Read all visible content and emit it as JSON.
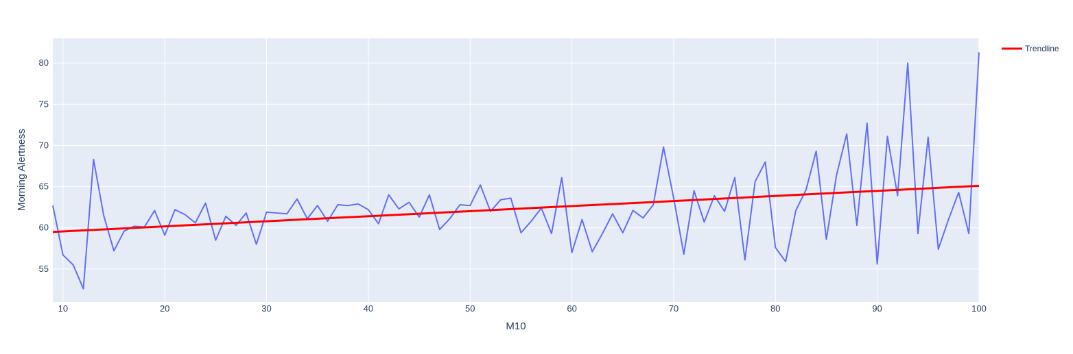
{
  "chart_data": {
    "type": "line",
    "title": "",
    "xlabel": "M10",
    "ylabel": "Morning Alertness",
    "xlim": [
      9,
      100
    ],
    "ylim": [
      51,
      83
    ],
    "xticks": [
      10,
      20,
      30,
      40,
      50,
      60,
      70,
      80,
      90,
      100
    ],
    "yticks": [
      55,
      60,
      65,
      70,
      75,
      80
    ],
    "grid": true,
    "legend": "top-right",
    "plot_bgcolor": "#e5ecf6",
    "series": [
      {
        "name": "",
        "color": "#636efa",
        "x": [
          9,
          10,
          11,
          12,
          13,
          14,
          15,
          16,
          17,
          18,
          19,
          20,
          21,
          22,
          23,
          24,
          25,
          26,
          27,
          28,
          29,
          30,
          31,
          32,
          33,
          34,
          35,
          36,
          37,
          38,
          39,
          40,
          41,
          42,
          43,
          44,
          45,
          46,
          47,
          48,
          49,
          50,
          51,
          52,
          53,
          54,
          55,
          56,
          57,
          58,
          59,
          60,
          61,
          62,
          63,
          64,
          65,
          66,
          67,
          68,
          69,
          70,
          71,
          72,
          73,
          74,
          75,
          76,
          77,
          78,
          79,
          80,
          81,
          82,
          83,
          84,
          85,
          86,
          87,
          88,
          89,
          90,
          91,
          92,
          93,
          94,
          95,
          96,
          97,
          98,
          99,
          100
        ],
        "y": [
          62.7,
          56.7,
          55.5,
          52.6,
          68.3,
          61.5,
          57.2,
          59.6,
          60.2,
          60.1,
          62.1,
          59.1,
          62.2,
          61.6,
          60.6,
          63.0,
          58.5,
          61.4,
          60.3,
          61.8,
          58.0,
          61.9,
          61.8,
          61.7,
          63.5,
          61.1,
          62.7,
          60.8,
          62.8,
          62.7,
          62.9,
          62.2,
          60.5,
          64.0,
          62.3,
          63.1,
          61.3,
          64.0,
          59.8,
          61.1,
          62.8,
          62.7,
          65.2,
          62.0,
          63.4,
          63.6,
          59.4,
          60.8,
          62.4,
          59.3,
          66.1,
          57.0,
          61.0,
          57.1,
          59.3,
          61.7,
          59.4,
          62.1,
          61.2,
          62.8,
          69.8,
          63.6,
          56.8,
          64.5,
          60.7,
          63.9,
          62.0,
          66.1,
          56.1,
          65.6,
          68.0,
          57.6,
          55.9,
          62.1,
          64.6,
          69.3,
          58.6,
          66.4,
          71.4,
          60.3,
          72.7,
          55.6,
          71.1,
          63.9,
          80.0,
          59.3,
          71.0,
          57.4,
          61.0,
          64.3,
          59.3,
          81.3
        ]
      },
      {
        "name": "Trendline",
        "color": "#ff0000",
        "x": [
          9,
          100
        ],
        "y": [
          59.5,
          65.1
        ]
      }
    ]
  }
}
